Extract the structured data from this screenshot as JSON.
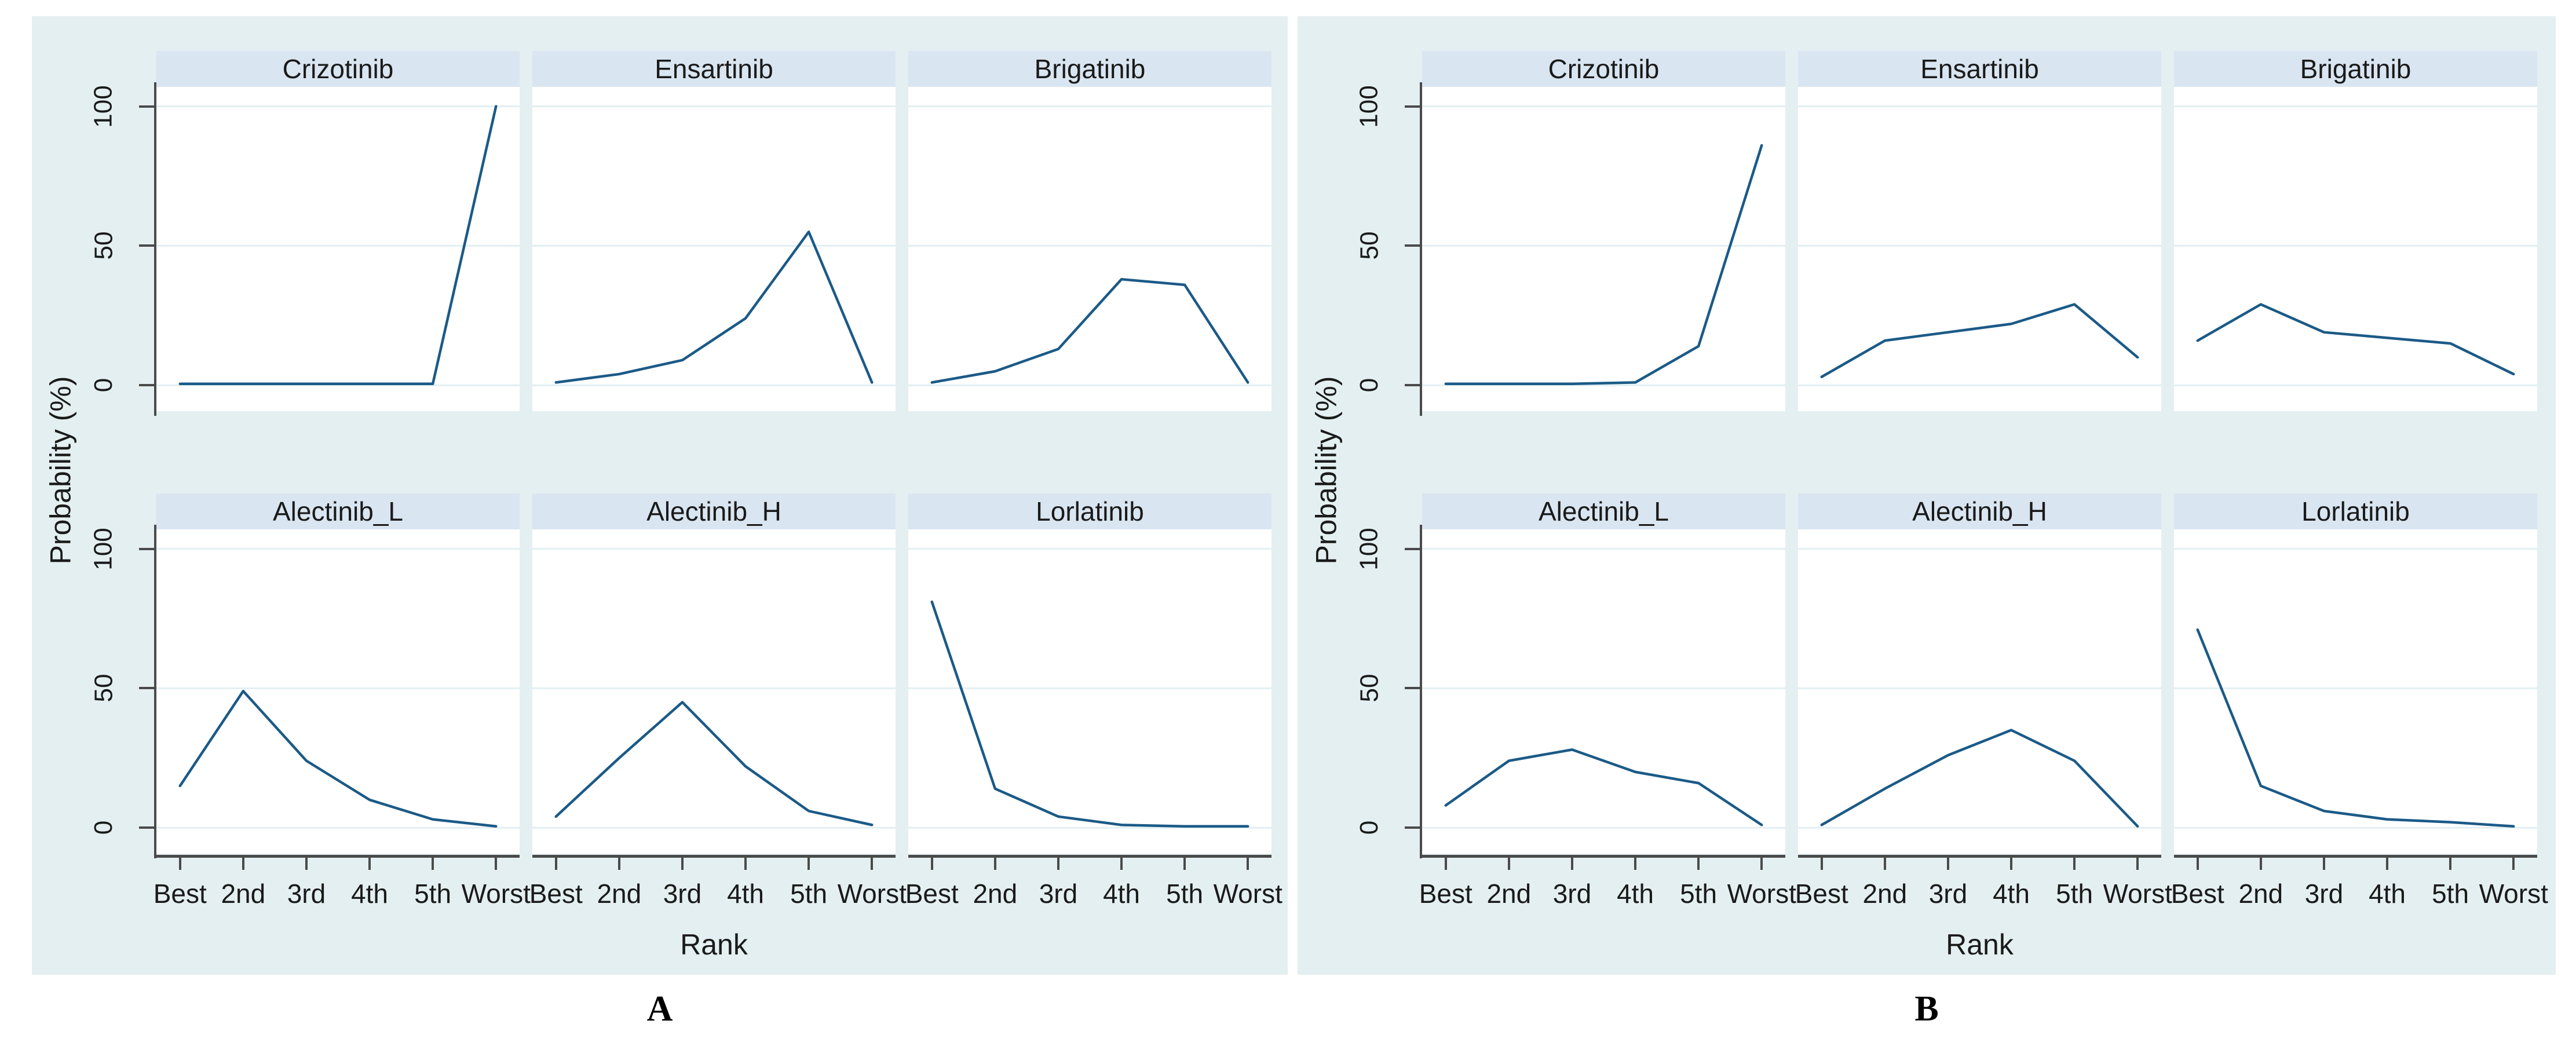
{
  "page": {
    "background": "#ffffff"
  },
  "colors": {
    "panel_bg": "#e4eff1",
    "header_bg": "#d9e5f0",
    "plot_bg": "#ffffff",
    "gridline": "#e2eff2",
    "line": "#1b5a87",
    "axis": "#4a4a4a",
    "text": "#1a1a1a"
  },
  "figure": {
    "y_axis_label": "Probability (%)",
    "x_axis_label": "Rank",
    "categories": [
      "Best",
      "2nd",
      "3rd",
      "4th",
      "5th",
      "Worst"
    ],
    "y_tick_labels": [
      "0",
      "50",
      "100"
    ],
    "y_tick_values": [
      0,
      50,
      100
    ]
  },
  "chart_data": [
    {
      "type": "line",
      "panel_label": "A",
      "title": "",
      "xlabel": "Rank",
      "ylabel": "Probability (%)",
      "categories": [
        "Best",
        "2nd",
        "3rd",
        "4th",
        "5th",
        "Worst"
      ],
      "ylim": [
        0,
        100
      ],
      "y_ticks": [
        0,
        50,
        100
      ],
      "grid": true,
      "legend_position": "none",
      "series": [
        {
          "name": "Crizotinib",
          "values": [
            0.5,
            0.5,
            0.5,
            0.5,
            0.5,
            100
          ]
        },
        {
          "name": "Ensartinib",
          "values": [
            1,
            4,
            9,
            24,
            55,
            1
          ]
        },
        {
          "name": "Brigatinib",
          "values": [
            1,
            5,
            13,
            38,
            36,
            1
          ]
        },
        {
          "name": "Alectinib_L",
          "values": [
            15,
            49,
            24,
            10,
            3,
            0.5
          ]
        },
        {
          "name": "Alectinib_H",
          "values": [
            4,
            25,
            45,
            22,
            6,
            1
          ]
        },
        {
          "name": "Lorlatinib",
          "values": [
            81,
            14,
            4,
            1,
            0.5,
            0.5
          ]
        }
      ]
    },
    {
      "type": "line",
      "panel_label": "B",
      "title": "",
      "xlabel": "Rank",
      "ylabel": "Probability (%)",
      "categories": [
        "Best",
        "2nd",
        "3rd",
        "4th",
        "5th",
        "Worst"
      ],
      "ylim": [
        0,
        100
      ],
      "y_ticks": [
        0,
        50,
        100
      ],
      "grid": true,
      "legend_position": "none",
      "series": [
        {
          "name": "Crizotinib",
          "values": [
            0.5,
            0.5,
            0.5,
            1,
            14,
            86
          ]
        },
        {
          "name": "Ensartinib",
          "values": [
            3,
            16,
            19,
            22,
            29,
            10
          ]
        },
        {
          "name": "Brigatinib",
          "values": [
            16,
            29,
            19,
            17,
            15,
            4
          ]
        },
        {
          "name": "Alectinib_L",
          "values": [
            8,
            24,
            28,
            20,
            16,
            1
          ]
        },
        {
          "name": "Alectinib_H",
          "values": [
            1,
            14,
            26,
            35,
            24,
            0.5
          ]
        },
        {
          "name": "Lorlatinib",
          "values": [
            71,
            15,
            6,
            3,
            2,
            0.5
          ]
        }
      ]
    }
  ]
}
